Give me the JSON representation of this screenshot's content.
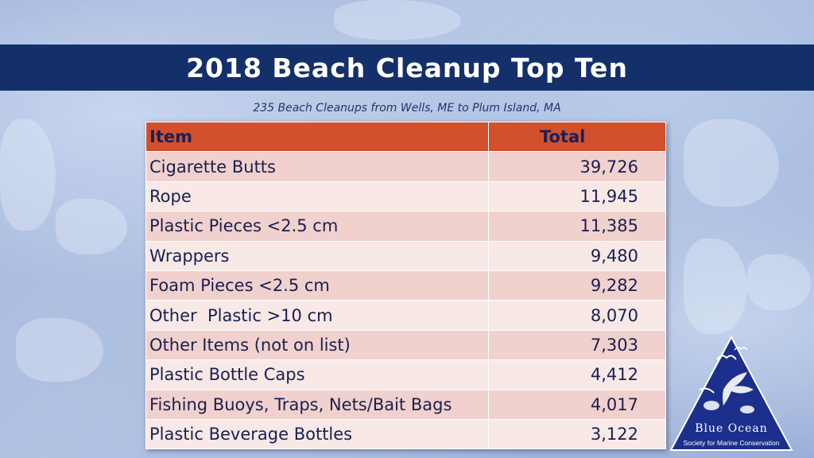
{
  "title": "2018 Beach Cleanup Top Ten",
  "subtitle": "235 Beach Cleanups from Wells, ME to Plum Island, MA",
  "table": {
    "headers": [
      "Item",
      "Total"
    ],
    "rows": [
      {
        "item": "Cigarette Butts",
        "total": "39,726"
      },
      {
        "item": "Rope",
        "total": "11,945"
      },
      {
        "item": "Plastic Pieces <2.5 cm",
        "total": "11,385"
      },
      {
        "item": "Wrappers",
        "total": "9,480"
      },
      {
        "item": "Foam Pieces <2.5 cm",
        "total": "9,282"
      },
      {
        "item": "Other  Plastic >10 cm",
        "total": "8,070"
      },
      {
        "item": "Other Items (not on list)",
        "total": "7,303"
      },
      {
        "item": "Plastic Bottle Caps",
        "total": "4,412"
      },
      {
        "item": "Fishing Buoys, Traps, Nets/Bait Bags",
        "total": "4,017"
      },
      {
        "item": "Plastic Beverage Bottles",
        "total": "3,122"
      }
    ]
  },
  "logo": {
    "name": "Blue Ocean",
    "tagline": "Society for Marine Conservation"
  },
  "colors": {
    "title_bar": "#14306a",
    "header_row": "#d2502b",
    "row_odd": "#f1d1cd",
    "row_even": "#f8e9e7",
    "logo_triangle": "#1c2f8c"
  }
}
